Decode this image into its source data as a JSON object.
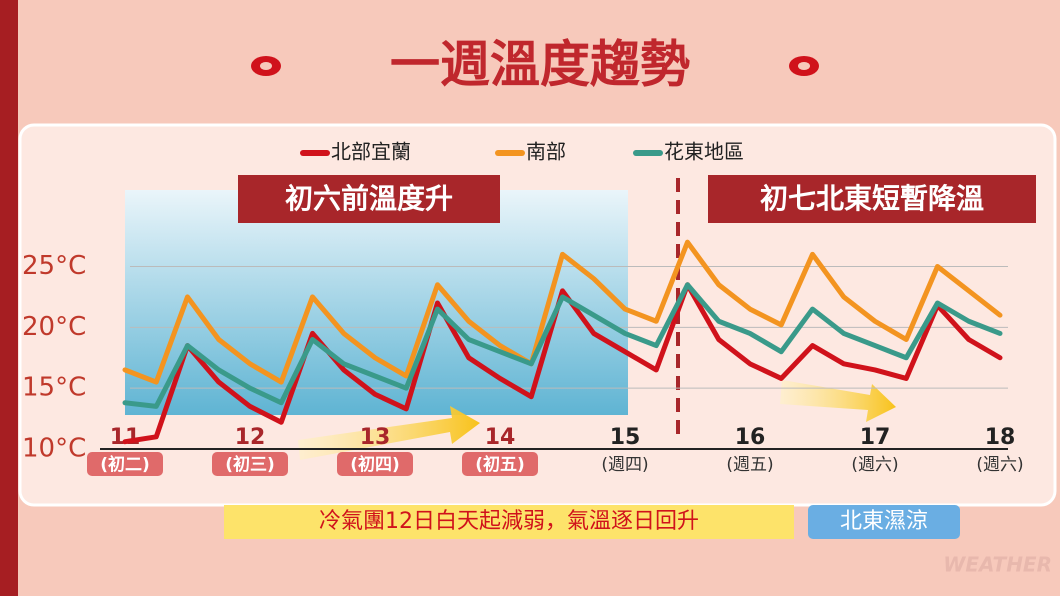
{
  "chart_data": {
    "type": "line",
    "title": "一週溫度趨勢",
    "banners": [
      "初六前溫度升",
      "初七北東短暫降溫"
    ],
    "caption": "冷氣團12日白天起減弱，氣溫逐日回升",
    "tag": "北東濕涼",
    "watermark": "WEATHER",
    "x": [
      11,
      11.25,
      11.5,
      11.75,
      12,
      12.25,
      12.5,
      12.75,
      13,
      13.25,
      13.5,
      13.75,
      14,
      14.25,
      14.5,
      14.75,
      15,
      15.25,
      15.5,
      15.75,
      16,
      16.25,
      16.5,
      16.75,
      17,
      17.25,
      17.5,
      17.75,
      18
    ],
    "series": [
      {
        "name": "北部宜蘭",
        "color": "#d0121b",
        "values": [
          10.6,
          11,
          18.5,
          15.5,
          13.5,
          12.2,
          19.5,
          16.5,
          14.5,
          13.3,
          22,
          17.5,
          15.8,
          14.3,
          23,
          19.5,
          18,
          16.5,
          23.5,
          19,
          17,
          15.8,
          18.5,
          17,
          16.5,
          15.8,
          21.8,
          19,
          17.5
        ]
      },
      {
        "name": "南部",
        "color": "#f39420",
        "values": [
          16.5,
          15.5,
          22.5,
          19,
          17,
          15.5,
          22.5,
          19.5,
          17.5,
          16,
          23.5,
          20.5,
          18.5,
          17,
          26,
          24,
          21.5,
          20.5,
          27,
          23.5,
          21.5,
          20.2,
          26,
          22.5,
          20.5,
          19,
          25,
          23,
          21
        ]
      },
      {
        "name": "花東地區",
        "color": "#3a9a8a",
        "values": [
          13.8,
          13.5,
          18.5,
          16.5,
          15,
          13.8,
          19,
          17,
          16,
          15,
          21.5,
          19,
          18,
          17,
          22.5,
          21,
          19.5,
          18.5,
          23.5,
          20.5,
          19.5,
          18,
          21.5,
          19.5,
          18.5,
          17.5,
          22,
          20.5,
          19.5
        ]
      }
    ],
    "xlim": [
      11,
      18
    ],
    "xticks": [
      11,
      12,
      13,
      14,
      15,
      16,
      17,
      18
    ],
    "x_sublabels": [
      "(初二)",
      "(初三)",
      "(初四)",
      "(初五)",
      "(週四)",
      "(週五)",
      "(週六)",
      "(週六)"
    ],
    "ylim": [
      10,
      28
    ],
    "yticks": [
      {
        "value": 10,
        "label": "10°C"
      },
      {
        "value": 15,
        "label": "15°C"
      },
      {
        "value": 20,
        "label": "20°C"
      },
      {
        "value": 25,
        "label": "25°C"
      }
    ],
    "grid": true
  }
}
